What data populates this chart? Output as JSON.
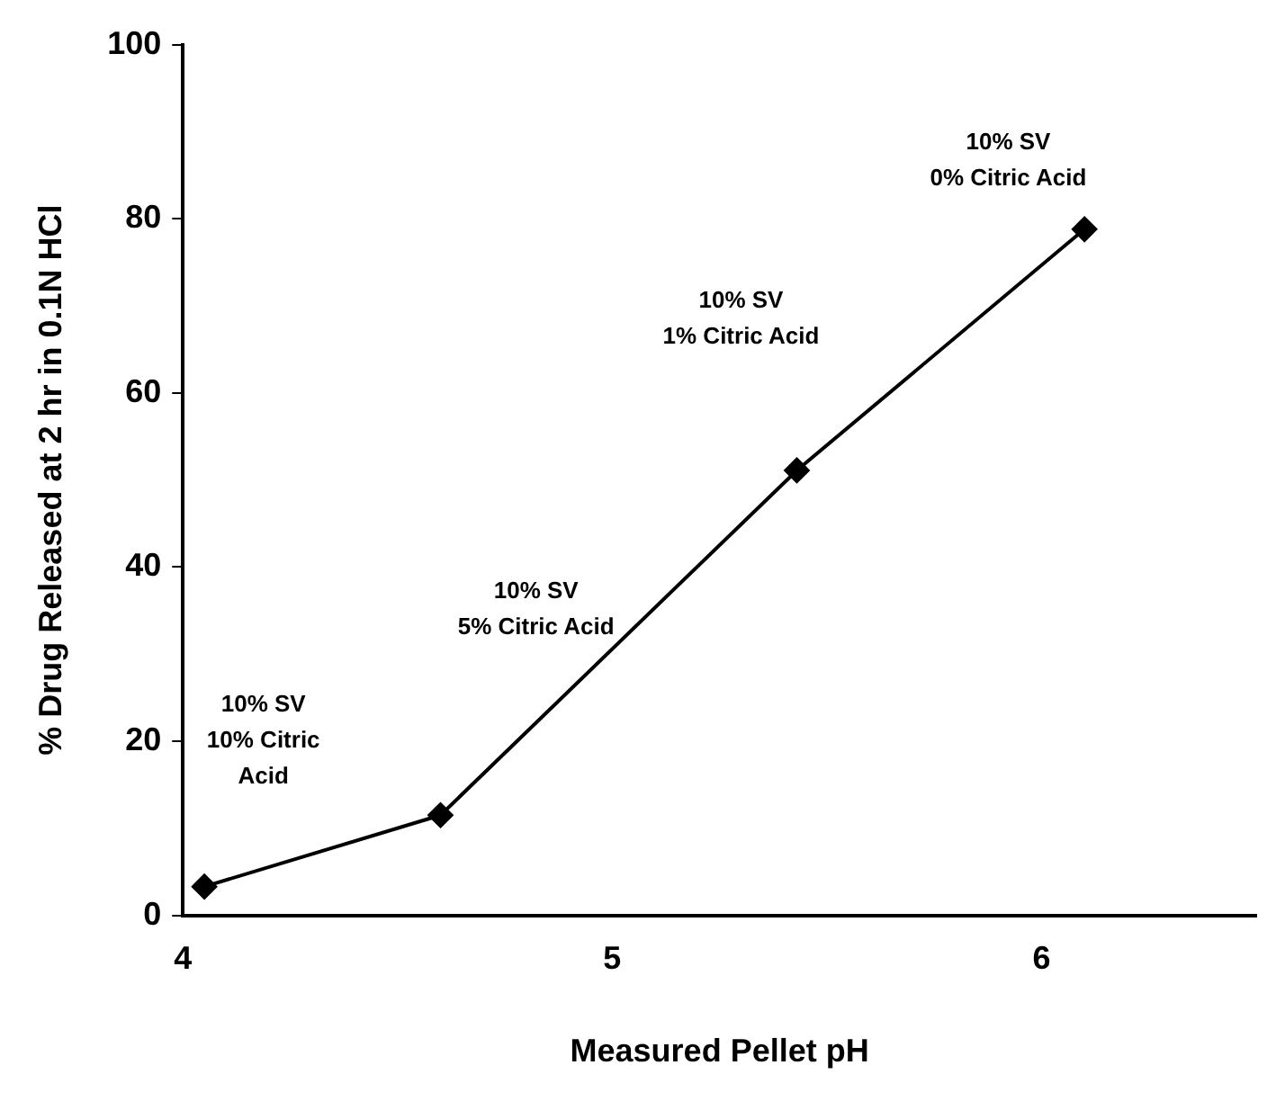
{
  "chart_data": {
    "type": "line",
    "xlabel": "Measured Pellet pH",
    "ylabel": "% Drug Released at 2 hr in 0.1N HCl",
    "x": [
      4.05,
      4.6,
      5.43,
      6.1
    ],
    "series": [
      {
        "color": "#000000",
        "values": [
          3.3,
          11.5,
          51.1,
          78.8
        ]
      }
    ],
    "xlim": [
      4,
      6.5
    ],
    "xticks": [
      4,
      5,
      6
    ],
    "ylim": [
      0,
      100
    ],
    "yticks": [
      0,
      20,
      40,
      60,
      80,
      100
    ],
    "grid": false,
    "legend": false,
    "marker": "diamond",
    "line_style": "solid",
    "annotations": [
      "10% SV\n10% Citric\nAcid",
      "10% SV\n5% Citric Acid",
      "10% SV\n1% Citric Acid",
      "10% SV\n0% Citric Acid"
    ]
  }
}
